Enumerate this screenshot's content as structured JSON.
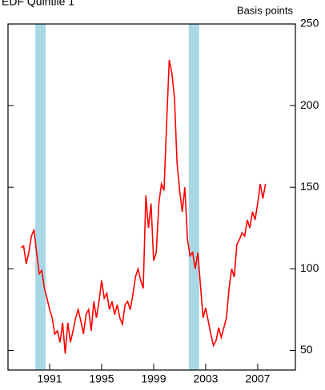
{
  "chart_data": {
    "type": "line",
    "title": "EDF Quintile 1",
    "y_axis_label": "Basis points",
    "x": [
      1988.8,
      1989.0,
      1989.2,
      1989.4,
      1989.6,
      1989.8,
      1990.0,
      1990.2,
      1990.4,
      1990.6,
      1990.8,
      1991.0,
      1991.2,
      1991.4,
      1991.6,
      1991.8,
      1992.0,
      1992.2,
      1992.4,
      1992.6,
      1992.8,
      1993.0,
      1993.2,
      1993.4,
      1993.6,
      1993.8,
      1994.0,
      1994.2,
      1994.4,
      1994.6,
      1994.8,
      1995.0,
      1995.2,
      1995.4,
      1995.6,
      1995.8,
      1996.0,
      1996.2,
      1996.4,
      1996.6,
      1996.8,
      1997.0,
      1997.2,
      1997.4,
      1997.6,
      1997.8,
      1998.0,
      1998.2,
      1998.4,
      1998.6,
      1998.8,
      1999.0,
      1999.2,
      1999.4,
      1999.6,
      1999.8,
      2000.0,
      2000.2,
      2000.4,
      2000.6,
      2000.8,
      2001.0,
      2001.2,
      2001.4,
      2001.6,
      2001.8,
      2002.0,
      2002.2,
      2002.4,
      2002.6,
      2002.8,
      2003.0,
      2003.2,
      2003.4,
      2003.6,
      2003.8,
      2004.0,
      2004.2,
      2004.4,
      2004.6,
      2004.8,
      2005.0,
      2005.2,
      2005.4,
      2005.6,
      2005.8,
      2006.0,
      2006.2,
      2006.4,
      2006.6,
      2006.8,
      2007.0,
      2007.2,
      2007.4,
      2007.6
    ],
    "series": [
      {
        "color": "#ff0000",
        "values": [
          113,
          114,
          103,
          110,
          120,
          124,
          110,
          97,
          99,
          88,
          82,
          75,
          70,
          60,
          62,
          55,
          67,
          48,
          67,
          55,
          62,
          70,
          75,
          68,
          60,
          72,
          75,
          62,
          80,
          70,
          80,
          93,
          82,
          85,
          75,
          80,
          72,
          78,
          70,
          66,
          78,
          80,
          75,
          84,
          95,
          100,
          93,
          88,
          145,
          125,
          140,
          105,
          110,
          140,
          152,
          148,
          190,
          228,
          220,
          205,
          165,
          148,
          135,
          150,
          118,
          108,
          110,
          100,
          110,
          90,
          70,
          76,
          68,
          60,
          53,
          56,
          64,
          58,
          64,
          70,
          88,
          100,
          95,
          115,
          118,
          122,
          120,
          130,
          125,
          135,
          130,
          140,
          152,
          143,
          152
        ]
      }
    ],
    "shaded_periods": [
      [
        1989.9,
        1990.7
      ],
      [
        2001.7,
        2002.5
      ]
    ],
    "shade_color": "#a8d8e6",
    "xlim": [
      1987.8,
      2009.9
    ],
    "xticks": [
      1991,
      1995,
      1999,
      2003,
      2007
    ],
    "ylim": [
      38,
      250
    ],
    "yticks": [
      50,
      100,
      150,
      200,
      250
    ]
  }
}
